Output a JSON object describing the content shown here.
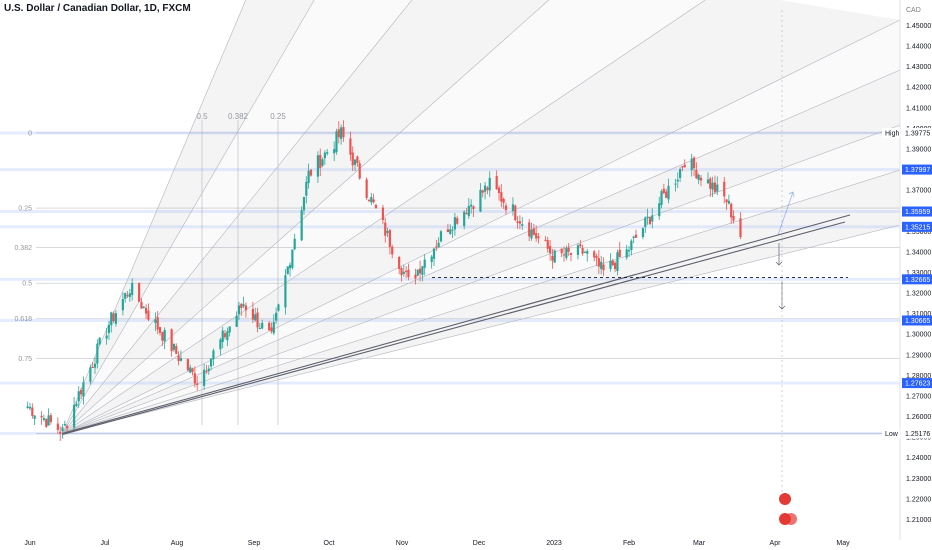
{
  "chart_data": {
    "type": "candlestick",
    "title": "U.S. Dollar / Canadian Dollar, 1D, FXCM",
    "currency": "CAD",
    "colors": {
      "up": "#26a69a",
      "down": "#ef5350",
      "level": "#2962ff",
      "fan": "#787b86",
      "trendline": "#5d606b"
    },
    "ylim": [
      1.2,
      1.4575
    ],
    "yticks": [
      "1.45000",
      "1.44000",
      "1.43000",
      "1.42000",
      "1.41000",
      "1.40000",
      "1.39000",
      "1.38000",
      "1.37000",
      "1.36000",
      "1.35000",
      "1.34000",
      "1.33000",
      "1.32000",
      "1.31000",
      "1.30000",
      "1.29000",
      "1.28000",
      "1.27000",
      "1.26000",
      "1.25000",
      "1.24000",
      "1.23000",
      "1.22000",
      "1.21000"
    ],
    "xticks": [
      "Jun",
      "Jul",
      "Aug",
      "Sep",
      "Oct",
      "Nov",
      "Dec",
      "2023",
      "Feb",
      "Mar",
      "Apr",
      "May"
    ],
    "x_range": [
      "2022-06-01",
      "2023-05-15"
    ],
    "price_levels": [
      {
        "label": "High",
        "value": "1.39775"
      },
      {
        "label": "",
        "value": "1.37997"
      },
      {
        "label": "",
        "value": "1.35959"
      },
      {
        "label": "",
        "value": "1.35215"
      },
      {
        "label": "",
        "value": "1.32665"
      },
      {
        "label": "",
        "value": "1.30665"
      },
      {
        "label": "",
        "value": "1.27623"
      },
      {
        "label": "Low",
        "value": "1.25176"
      }
    ],
    "fib_levels": [
      {
        "ratio": "0",
        "price": 1.39775
      },
      {
        "ratio": "0.25",
        "price": 1.36125
      },
      {
        "ratio": "0.382",
        "price": 1.342
      },
      {
        "ratio": "0.5",
        "price": 1.32475
      },
      {
        "ratio": "0.618",
        "price": 1.3075
      },
      {
        "ratio": "0.75",
        "price": 1.28825
      },
      {
        "ratio": "",
        "price": 1.25176
      }
    ],
    "time_fib_labels": [
      "0.5",
      "0.382",
      "0.25"
    ],
    "key_points": [
      {
        "date": "2022-05-31",
        "close": 1.265
      },
      {
        "date": "2022-06-15",
        "close": 1.2525
      },
      {
        "date": "2022-07-05",
        "close": 1.305
      },
      {
        "date": "2022-07-14",
        "close": 1.3225
      },
      {
        "date": "2022-08-05",
        "close": 1.2875
      },
      {
        "date": "2022-08-12",
        "close": 1.2775
      },
      {
        "date": "2022-09-01",
        "close": 1.315
      },
      {
        "date": "2022-09-13",
        "close": 1.2975
      },
      {
        "date": "2022-09-29",
        "close": 1.3775
      },
      {
        "date": "2022-10-13",
        "close": 1.3975
      },
      {
        "date": "2022-10-31",
        "close": 1.3525
      },
      {
        "date": "2022-11-11",
        "close": 1.325
      },
      {
        "date": "2022-11-28",
        "close": 1.3525
      },
      {
        "date": "2022-12-16",
        "close": 1.3725
      },
      {
        "date": "2023-01-13",
        "close": 1.3375
      },
      {
        "date": "2023-01-26",
        "close": 1.34
      },
      {
        "date": "2023-02-03",
        "close": 1.33
      },
      {
        "date": "2023-02-13",
        "close": 1.34
      },
      {
        "date": "2023-03-07",
        "close": 1.3775
      },
      {
        "date": "2023-03-10",
        "close": 1.385
      },
      {
        "date": "2023-03-28",
        "close": 1.365
      },
      {
        "date": "2023-04-04",
        "close": 1.345
      }
    ]
  }
}
